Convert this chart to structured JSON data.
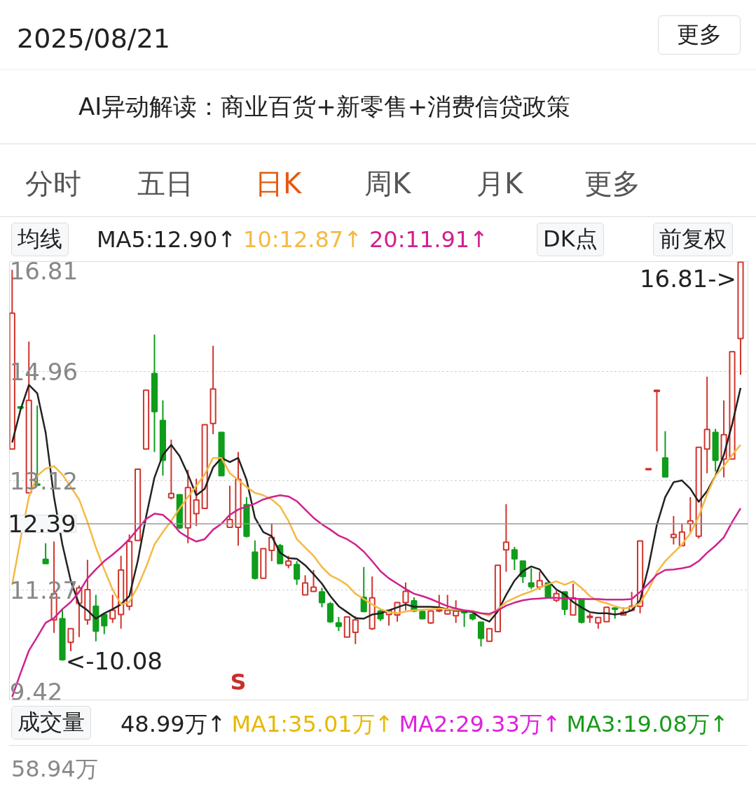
{
  "chart_data": {
    "type": "candlestick",
    "title": "2025/08/21",
    "subtitle": "AI异动解读：商业百货+新零售+消费信贷政策",
    "categories": [
      null,
      null,
      null,
      null,
      null,
      null,
      null,
      null,
      null,
      null,
      null,
      null,
      null,
      null,
      null,
      null,
      null,
      null,
      null,
      null,
      null,
      null,
      null,
      null,
      null,
      null,
      null,
      null,
      null,
      null,
      null,
      null,
      null,
      null,
      null,
      null,
      null,
      null,
      null,
      null,
      null,
      null,
      null,
      null,
      null,
      null,
      null,
      null,
      null,
      null,
      null,
      null,
      null,
      null,
      null,
      null,
      null,
      null,
      null,
      null,
      null,
      null,
      null,
      null,
      null,
      null,
      null,
      null,
      null,
      null,
      null,
      null,
      null,
      null,
      null,
      null,
      null,
      null,
      null,
      null,
      null,
      null,
      null,
      null,
      null,
      null,
      null,
      null
    ],
    "ohlc": [
      [
        13.65,
        16.67,
        13.65,
        15.94
      ],
      [
        14.36,
        14.36,
        14.34,
        14.34
      ],
      [
        12.91,
        15.46,
        12.91,
        14.47
      ],
      [
        13.06,
        14.38,
        13.03,
        13.04
      ],
      [
        11.79,
        12.06,
        11.72,
        11.72
      ],
      [
        10.77,
        12.09,
        10.55,
        11.21
      ],
      [
        10.79,
        10.95,
        10.08,
        10.1
      ],
      [
        10.39,
        10.62,
        10.24,
        10.62
      ],
      [
        11.05,
        11.35,
        10.48,
        11.31
      ],
      [
        10.77,
        11.78,
        10.69,
        11.28
      ],
      [
        11.0,
        11.19,
        10.41,
        10.58
      ],
      [
        10.86,
        10.86,
        10.53,
        10.67
      ],
      [
        10.79,
        11.19,
        10.72,
        10.93
      ],
      [
        10.86,
        11.85,
        10.62,
        11.61
      ],
      [
        11.0,
        12.21,
        10.93,
        12.09
      ],
      [
        12.11,
        13.31,
        12.11,
        13.31
      ],
      [
        13.65,
        14.64,
        13.65,
        14.64
      ],
      [
        14.92,
        15.58,
        13.6,
        14.28
      ],
      [
        14.13,
        14.47,
        13.2,
        13.46
      ],
      [
        12.83,
        13.81,
        12.8,
        12.9
      ],
      [
        12.88,
        12.88,
        12.3,
        12.32
      ],
      [
        12.32,
        13.3,
        12.06,
        13.0
      ],
      [
        12.56,
        13.15,
        12.35,
        12.79
      ],
      [
        12.65,
        14.06,
        12.65,
        14.06
      ],
      [
        14.08,
        15.39,
        13.9,
        14.66
      ],
      [
        13.93,
        13.93,
        13.2,
        13.2
      ],
      [
        12.33,
        13.03,
        12.33,
        12.46
      ],
      [
        12.33,
        13.6,
        12.02,
        13.14
      ],
      [
        12.71,
        12.84,
        12.16,
        12.18
      ],
      [
        11.91,
        12.11,
        11.45,
        11.47
      ],
      [
        11.47,
        11.97,
        11.47,
        11.97
      ],
      [
        11.94,
        12.39,
        11.76,
        12.16
      ],
      [
        12.02,
        12.05,
        11.72,
        11.72
      ],
      [
        11.69,
        11.85,
        11.64,
        11.76
      ],
      [
        11.7,
        11.76,
        11.36,
        11.46
      ],
      [
        11.19,
        11.52,
        11.19,
        11.39
      ],
      [
        11.25,
        11.61,
        11.24,
        11.32
      ],
      [
        11.24,
        11.31,
        10.98,
        11.06
      ],
      [
        11.04,
        11.07,
        10.72,
        10.74
      ],
      [
        10.72,
        10.82,
        10.58,
        10.66
      ],
      [
        10.48,
        10.82,
        10.48,
        10.82
      ],
      [
        10.56,
        10.83,
        10.36,
        10.77
      ],
      [
        11.15,
        11.66,
        10.9,
        10.91
      ],
      [
        10.62,
        11.5,
        10.6,
        11.14
      ],
      [
        10.92,
        10.95,
        10.75,
        10.79
      ],
      [
        10.86,
        10.93,
        10.67,
        10.93
      ],
      [
        10.85,
        11.07,
        10.74,
        11.06
      ],
      [
        11.06,
        11.4,
        10.93,
        11.25
      ],
      [
        11.09,
        11.15,
        10.9,
        10.92
      ],
      [
        10.91,
        10.91,
        10.78,
        10.79
      ],
      [
        10.72,
        10.93,
        10.7,
        10.92
      ],
      [
        10.92,
        11.19,
        10.9,
        10.94
      ],
      [
        10.87,
        11.19,
        10.86,
        10.93
      ],
      [
        10.84,
        11.1,
        10.72,
        10.92
      ],
      [
        10.91,
        10.93,
        10.65,
        10.89
      ],
      [
        10.86,
        10.88,
        10.76,
        10.79
      ],
      [
        10.73,
        10.74,
        10.32,
        10.46
      ],
      [
        10.41,
        10.62,
        10.41,
        10.62
      ],
      [
        10.57,
        11.69,
        10.57,
        11.69
      ],
      [
        11.95,
        12.72,
        11.58,
        12.08
      ],
      [
        11.95,
        12.0,
        11.61,
        11.8
      ],
      [
        11.76,
        11.76,
        11.39,
        11.5
      ],
      [
        11.39,
        11.64,
        11.29,
        11.33
      ],
      [
        11.32,
        11.58,
        11.28,
        11.43
      ],
      [
        11.39,
        11.39,
        11.13,
        11.15
      ],
      [
        11.1,
        11.26,
        11.07,
        11.21
      ],
      [
        11.24,
        11.24,
        10.85,
        10.95
      ],
      [
        10.85,
        11.38,
        10.85,
        11.14
      ],
      [
        11.12,
        11.12,
        10.71,
        10.73
      ],
      [
        10.81,
        10.88,
        10.72,
        10.83
      ],
      [
        10.72,
        10.81,
        10.62,
        10.81
      ],
      [
        10.74,
        10.98,
        10.74,
        10.98
      ],
      [
        10.97,
        10.97,
        10.79,
        10.95
      ],
      [
        10.85,
        10.98,
        10.85,
        10.9
      ],
      [
        10.93,
        11.24,
        10.92,
        11.0
      ],
      [
        11.0,
        12.1,
        10.88,
        12.1
      ],
      [
        13.3,
        13.32,
        13.3,
        13.32
      ],
      [
        14.62,
        14.64,
        13.61,
        14.64
      ],
      [
        13.5,
        13.95,
        13.18,
        13.18
      ],
      [
        12.16,
        12.52,
        12.04,
        12.21
      ],
      [
        12.02,
        12.39,
        12.02,
        12.25
      ],
      [
        12.39,
        12.84,
        12.23,
        12.44
      ],
      [
        12.18,
        13.68,
        12.14,
        13.68
      ],
      [
        13.65,
        14.87,
        13.24,
        13.98
      ],
      [
        13.93,
        13.99,
        13.27,
        13.46
      ],
      [
        13.48,
        14.47,
        13.17,
        13.89
      ],
      [
        13.48,
        15.29,
        13.48,
        15.29
      ],
      [
        15.51,
        16.81,
        14.9,
        16.8
      ]
    ],
    "series": [
      {
        "name": "MA5:12.90↑",
        "type": "line",
        "color": "#222222",
        "values": [
          13.76,
          14.31,
          14.73,
          14.59,
          13.93,
          12.84,
          12.04,
          11.43,
          11.03,
          10.93,
          10.79,
          10.88,
          10.95,
          11.03,
          11.17,
          11.76,
          12.51,
          13.17,
          13.55,
          13.72,
          13.53,
          13.22,
          12.87,
          12.98,
          13.34,
          13.5,
          13.43,
          13.5,
          13.13,
          12.49,
          12.25,
          12.18,
          11.9,
          11.81,
          11.8,
          11.69,
          11.54,
          11.38,
          11.17,
          11.0,
          10.9,
          10.8,
          10.79,
          10.86,
          10.88,
          10.93,
          10.98,
          11.03,
          10.99,
          10.99,
          10.99,
          10.98,
          10.95,
          10.93,
          10.92,
          10.9,
          10.8,
          10.74,
          10.91,
          11.19,
          11.43,
          11.59,
          11.67,
          11.62,
          11.43,
          11.28,
          11.2,
          11.07,
          10.98,
          10.9,
          10.88,
          10.88,
          10.86,
          10.88,
          10.93,
          11.1,
          11.66,
          12.37,
          12.84,
          13.09,
          13.12,
          12.98,
          12.76,
          12.94,
          13.2,
          13.55,
          14.07,
          14.68
        ]
      },
      {
        "name": "10:12.87↑",
        "type": "line",
        "color": "#f5b942",
        "values": [
          11.36,
          12.13,
          12.84,
          13.2,
          13.32,
          13.36,
          13.22,
          13.01,
          12.8,
          12.42,
          11.99,
          11.62,
          11.28,
          11.03,
          11.07,
          11.33,
          11.66,
          12.04,
          12.25,
          12.44,
          12.65,
          12.84,
          13.03,
          13.22,
          13.5,
          13.5,
          13.24,
          13.13,
          13.01,
          12.91,
          12.87,
          12.8,
          12.68,
          12.44,
          12.13,
          11.99,
          11.85,
          11.66,
          11.52,
          11.45,
          11.36,
          11.21,
          11.12,
          11.03,
          10.95,
          10.9,
          10.88,
          10.91,
          10.93,
          10.94,
          10.95,
          10.96,
          10.95,
          10.94,
          10.93,
          10.92,
          10.88,
          10.84,
          10.95,
          11.07,
          11.14,
          11.2,
          11.25,
          11.31,
          11.37,
          11.42,
          11.36,
          11.42,
          11.31,
          11.17,
          11.09,
          11.05,
          11.0,
          10.96,
          10.98,
          11.05,
          11.28,
          11.57,
          11.76,
          11.9,
          12.04,
          12.23,
          12.51,
          12.89,
          13.2,
          13.36,
          13.55,
          13.72
        ]
      },
      {
        "name": "20:11.91↑",
        "type": "line",
        "color": "#d0218f",
        "values": [
          9.47,
          9.87,
          10.25,
          10.48,
          10.72,
          10.8,
          10.95,
          11.07,
          11.24,
          11.47,
          11.62,
          11.76,
          11.87,
          11.99,
          12.13,
          12.3,
          12.47,
          12.56,
          12.54,
          12.42,
          12.25,
          12.16,
          12.09,
          12.13,
          12.29,
          12.39,
          12.54,
          12.63,
          12.68,
          12.73,
          12.8,
          12.84,
          12.87,
          12.85,
          12.77,
          12.63,
          12.49,
          12.38,
          12.29,
          12.19,
          12.13,
          12.04,
          11.92,
          11.76,
          11.59,
          11.47,
          11.38,
          11.29,
          11.21,
          11.17,
          11.12,
          11.06,
          11.0,
          10.96,
          10.93,
          10.91,
          10.88,
          10.87,
          10.93,
          11.01,
          11.06,
          11.1,
          11.12,
          11.13,
          11.14,
          11.14,
          11.13,
          11.13,
          11.12,
          11.12,
          11.12,
          11.11,
          11.11,
          11.11,
          11.12,
          11.24,
          11.38,
          11.53,
          11.61,
          11.62,
          11.64,
          11.67,
          11.76,
          11.9,
          12.02,
          12.16,
          12.42,
          12.65
        ]
      }
    ],
    "ylim": [
      9.42,
      16.81
    ],
    "yticks": [
      16.81,
      14.96,
      13.12,
      11.27,
      9.42
    ],
    "grid": "y",
    "legend": "top",
    "ref_lines": [
      {
        "axis": "y",
        "value": 12.39,
        "label": "12.39",
        "color": "#999999"
      }
    ],
    "annotations": [
      "更多",
      "分时",
      "五日",
      "日K",
      "周K",
      "月K",
      "更多",
      "均线",
      "DK点",
      "前复权",
      "S",
      "成交量",
      "48.99万↑",
      "MA1:35.01万↑",
      "MA2:29.33万↑",
      "MA3:19.08万↑",
      "58.94万",
      "16.81->",
      "<-10.08"
    ]
  }
}
